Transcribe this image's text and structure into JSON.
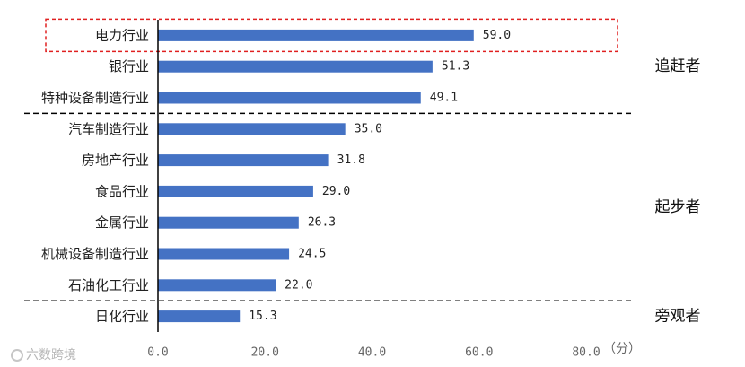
{
  "chart_data": {
    "type": "bar",
    "orientation": "horizontal",
    "categories": [
      "电力行业",
      "银行业",
      "特种设备制造行业",
      "汽车制造行业",
      "房地产行业",
      "食品行业",
      "金属行业",
      "机械设备制造行业",
      "石油化工行业",
      "日化行业"
    ],
    "values": [
      59.0,
      51.3,
      49.1,
      35.0,
      31.8,
      29.0,
      26.3,
      24.5,
      22.0,
      15.3
    ],
    "value_labels": [
      "59.0",
      "51.3",
      "49.1",
      "35.0",
      "31.8",
      "29.0",
      "26.3",
      "24.5",
      "22.0",
      "15.3"
    ],
    "xlim": [
      0,
      80
    ],
    "x_ticks": [
      "0.0",
      "20.0",
      "40.0",
      "60.0",
      "80.0"
    ],
    "x_unit": "（分）",
    "title": "",
    "groups": [
      {
        "name": "追赶者",
        "from": 0,
        "to": 2
      },
      {
        "name": "起步者",
        "from": 3,
        "to": 8
      },
      {
        "name": "旁观者",
        "from": 9,
        "to": 9
      }
    ],
    "highlighted_category": "电力行业",
    "bar_color": "#4472C4",
    "highlight_box_color": "#e02020",
    "grid": false
  },
  "watermark": {
    "text": "六数跨境"
  }
}
